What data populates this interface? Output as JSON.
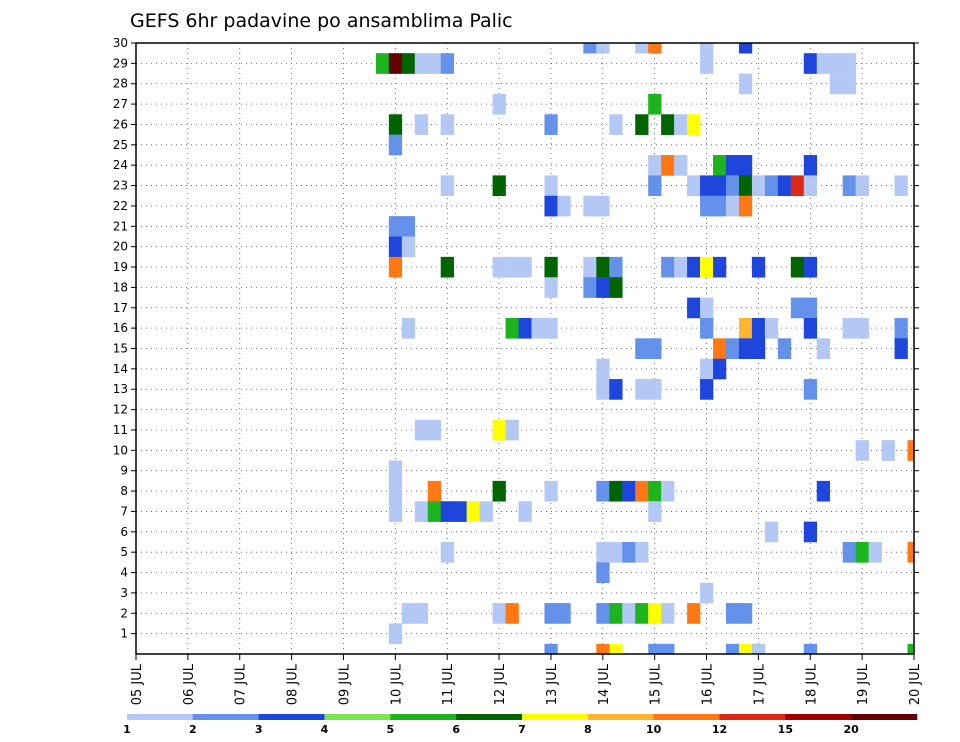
{
  "chart_data": {
    "type": "heatmap",
    "title": "GEFS 6hr padavine po ansamblima Palic",
    "x_ticks": [
      "05 JUL",
      "06 JUL",
      "07 JUL",
      "08 JUL",
      "09 JUL",
      "10 JUL",
      "11 JUL",
      "12 JUL",
      "13 JUL",
      "14 JUL",
      "15 JUL",
      "16 JUL",
      "17 JUL",
      "18 JUL",
      "19 JUL",
      "20 JUL"
    ],
    "x_range": [
      "05 JUL",
      "20 JUL"
    ],
    "y_ticks": [
      1,
      2,
      3,
      4,
      5,
      6,
      7,
      8,
      9,
      10,
      11,
      12,
      13,
      14,
      15,
      16,
      17,
      18,
      19,
      20,
      21,
      22,
      23,
      24,
      25,
      26,
      27,
      28,
      29,
      30
    ],
    "y_range": [
      0,
      30
    ],
    "grid": true,
    "colorbar": {
      "labels": [
        "1",
        "2",
        "3",
        "4",
        "5",
        "6",
        "7",
        "8",
        "10",
        "12",
        "15",
        "20"
      ],
      "colors": [
        "#b4c8f5",
        "#6492eb",
        "#1e46dc",
        "#78e650",
        "#1eb41e",
        "#006400",
        "#ffff00",
        "#ffb432",
        "#ff7814",
        "#dc2814",
        "#a00000",
        "#640000"
      ]
    },
    "cells": [
      [
        9.75,
        29,
        4
      ],
      [
        10.0,
        29,
        11
      ],
      [
        10.25,
        29,
        5
      ],
      [
        10.5,
        29,
        0
      ],
      [
        10.75,
        29,
        0
      ],
      [
        11.0,
        29,
        1
      ],
      [
        13.75,
        30,
        1
      ],
      [
        14.0,
        30,
        0
      ],
      [
        14.75,
        30,
        0
      ],
      [
        15.0,
        30,
        8
      ],
      [
        16.0,
        30,
        0
      ],
      [
        16.75,
        30,
        2
      ],
      [
        16.0,
        29,
        0
      ],
      [
        18.0,
        29,
        2
      ],
      [
        18.25,
        29,
        0
      ],
      [
        18.5,
        29,
        0
      ],
      [
        18.75,
        29,
        0
      ],
      [
        16.75,
        28,
        0
      ],
      [
        18.5,
        28,
        0
      ],
      [
        18.75,
        28,
        0
      ],
      [
        12.0,
        27,
        0
      ],
      [
        15.0,
        27,
        4
      ],
      [
        10.0,
        26,
        5
      ],
      [
        10.5,
        26,
        0
      ],
      [
        11.0,
        26,
        0
      ],
      [
        13.0,
        26,
        1
      ],
      [
        14.25,
        26,
        0
      ],
      [
        14.75,
        26,
        5
      ],
      [
        15.25,
        26,
        5
      ],
      [
        15.5,
        26,
        0
      ],
      [
        15.75,
        26,
        6
      ],
      [
        10.0,
        25,
        1
      ],
      [
        15.0,
        24,
        0
      ],
      [
        15.25,
        24,
        8
      ],
      [
        15.5,
        24,
        0
      ],
      [
        16.25,
        24,
        4
      ],
      [
        16.5,
        24,
        2
      ],
      [
        16.75,
        24,
        2
      ],
      [
        18.0,
        24,
        2
      ],
      [
        11.0,
        23,
        0
      ],
      [
        12.0,
        23,
        5
      ],
      [
        13.0,
        23,
        0
      ],
      [
        15.0,
        23,
        1
      ],
      [
        15.75,
        23,
        0
      ],
      [
        16.0,
        23,
        2
      ],
      [
        16.25,
        23,
        2
      ],
      [
        16.5,
        23,
        1
      ],
      [
        16.75,
        23,
        5
      ],
      [
        17.0,
        23,
        0
      ],
      [
        17.25,
        23,
        1
      ],
      [
        17.5,
        23,
        2
      ],
      [
        17.75,
        23,
        9
      ],
      [
        18.0,
        23,
        0
      ],
      [
        18.75,
        23,
        1
      ],
      [
        19.0,
        23,
        0
      ],
      [
        19.75,
        23,
        0
      ],
      [
        13.0,
        22,
        2
      ],
      [
        13.25,
        22,
        0
      ],
      [
        13.75,
        22,
        0
      ],
      [
        14.0,
        22,
        0
      ],
      [
        16.0,
        22,
        1
      ],
      [
        16.25,
        22,
        1
      ],
      [
        16.5,
        22,
        0
      ],
      [
        16.75,
        22,
        8
      ],
      [
        10.0,
        21,
        1
      ],
      [
        10.25,
        21,
        1
      ],
      [
        10.0,
        20,
        2
      ],
      [
        10.25,
        20,
        0
      ],
      [
        10.0,
        19,
        8
      ],
      [
        11.0,
        19,
        5
      ],
      [
        12.0,
        19,
        0
      ],
      [
        12.25,
        19,
        0
      ],
      [
        12.5,
        19,
        0
      ],
      [
        13.0,
        19,
        5
      ],
      [
        13.75,
        19,
        0
      ],
      [
        14.0,
        19,
        5
      ],
      [
        14.25,
        19,
        1
      ],
      [
        15.25,
        19,
        1
      ],
      [
        15.5,
        19,
        0
      ],
      [
        15.75,
        19,
        2
      ],
      [
        16.0,
        19,
        6
      ],
      [
        16.25,
        19,
        2
      ],
      [
        17.0,
        19,
        2
      ],
      [
        17.75,
        19,
        5
      ],
      [
        18.0,
        19,
        2
      ],
      [
        13.0,
        18,
        0
      ],
      [
        13.75,
        18,
        1
      ],
      [
        14.0,
        18,
        2
      ],
      [
        14.25,
        18,
        5
      ],
      [
        15.75,
        17,
        2
      ],
      [
        16.0,
        17,
        0
      ],
      [
        17.75,
        17,
        1
      ],
      [
        18.0,
        17,
        1
      ],
      [
        10.25,
        16,
        0
      ],
      [
        12.25,
        16,
        4
      ],
      [
        12.5,
        16,
        2
      ],
      [
        12.75,
        16,
        0
      ],
      [
        13.0,
        16,
        0
      ],
      [
        16.0,
        16,
        1
      ],
      [
        16.75,
        16,
        7
      ],
      [
        17.0,
        16,
        2
      ],
      [
        17.25,
        16,
        0
      ],
      [
        18.0,
        16,
        2
      ],
      [
        18.75,
        16,
        0
      ],
      [
        19.0,
        16,
        0
      ],
      [
        19.75,
        16,
        1
      ],
      [
        14.75,
        15,
        1
      ],
      [
        15.0,
        15,
        1
      ],
      [
        16.25,
        15,
        8
      ],
      [
        16.5,
        15,
        1
      ],
      [
        16.75,
        15,
        2
      ],
      [
        17.0,
        15,
        2
      ],
      [
        17.5,
        15,
        1
      ],
      [
        18.25,
        15,
        0
      ],
      [
        19.75,
        15,
        2
      ],
      [
        14.0,
        14,
        0
      ],
      [
        16.0,
        14,
        0
      ],
      [
        16.25,
        14,
        2
      ],
      [
        14.0,
        13,
        0
      ],
      [
        14.25,
        13,
        2
      ],
      [
        14.75,
        13,
        0
      ],
      [
        15.0,
        13,
        0
      ],
      [
        16.0,
        13,
        2
      ],
      [
        18.0,
        13,
        1
      ],
      [
        10.5,
        11,
        0
      ],
      [
        10.75,
        11,
        0
      ],
      [
        12.0,
        11,
        6
      ],
      [
        12.25,
        11,
        0
      ],
      [
        19.0,
        10,
        0
      ],
      [
        19.5,
        10,
        0
      ],
      [
        20.0,
        10,
        8
      ],
      [
        10.0,
        9,
        0
      ],
      [
        10.0,
        8,
        0
      ],
      [
        10.75,
        8,
        8
      ],
      [
        12.0,
        8,
        5
      ],
      [
        13.0,
        8,
        0
      ],
      [
        14.0,
        8,
        1
      ],
      [
        14.25,
        8,
        5
      ],
      [
        14.5,
        8,
        2
      ],
      [
        14.75,
        8,
        8
      ],
      [
        15.0,
        8,
        4
      ],
      [
        15.25,
        8,
        0
      ],
      [
        18.25,
        8,
        2
      ],
      [
        10.0,
        7,
        0
      ],
      [
        10.5,
        7,
        0
      ],
      [
        10.75,
        7,
        4
      ],
      [
        11.0,
        7,
        2
      ],
      [
        11.25,
        7,
        2
      ],
      [
        11.5,
        7,
        6
      ],
      [
        11.75,
        7,
        0
      ],
      [
        12.5,
        7,
        0
      ],
      [
        15.0,
        7,
        0
      ],
      [
        17.25,
        6,
        0
      ],
      [
        18.0,
        6,
        2
      ],
      [
        11.0,
        5,
        0
      ],
      [
        14.0,
        5,
        0
      ],
      [
        14.25,
        5,
        0
      ],
      [
        14.5,
        5,
        1
      ],
      [
        14.75,
        5,
        0
      ],
      [
        18.75,
        5,
        1
      ],
      [
        19.0,
        5,
        4
      ],
      [
        19.25,
        5,
        0
      ],
      [
        20.0,
        5,
        8
      ],
      [
        14.0,
        4,
        1
      ],
      [
        16.0,
        3,
        0
      ],
      [
        10.25,
        2,
        0
      ],
      [
        10.5,
        2,
        0
      ],
      [
        12.0,
        2,
        0
      ],
      [
        12.25,
        2,
        8
      ],
      [
        13.0,
        2,
        1
      ],
      [
        13.25,
        2,
        1
      ],
      [
        14.0,
        2,
        1
      ],
      [
        14.25,
        2,
        4
      ],
      [
        14.5,
        2,
        0
      ],
      [
        14.75,
        2,
        4
      ],
      [
        15.0,
        2,
        6
      ],
      [
        15.25,
        2,
        0
      ],
      [
        15.75,
        2,
        8
      ],
      [
        16.5,
        2,
        1
      ],
      [
        16.75,
        2,
        1
      ],
      [
        10.0,
        1,
        0
      ],
      [
        13.0,
        0,
        1
      ],
      [
        14.0,
        0,
        8
      ],
      [
        14.25,
        0,
        6
      ],
      [
        15.0,
        0,
        1
      ],
      [
        15.25,
        0,
        1
      ],
      [
        16.5,
        0,
        1
      ],
      [
        16.75,
        0,
        6
      ],
      [
        17.0,
        0,
        0
      ],
      [
        18.0,
        0,
        1
      ],
      [
        20.0,
        0,
        4
      ]
    ]
  }
}
